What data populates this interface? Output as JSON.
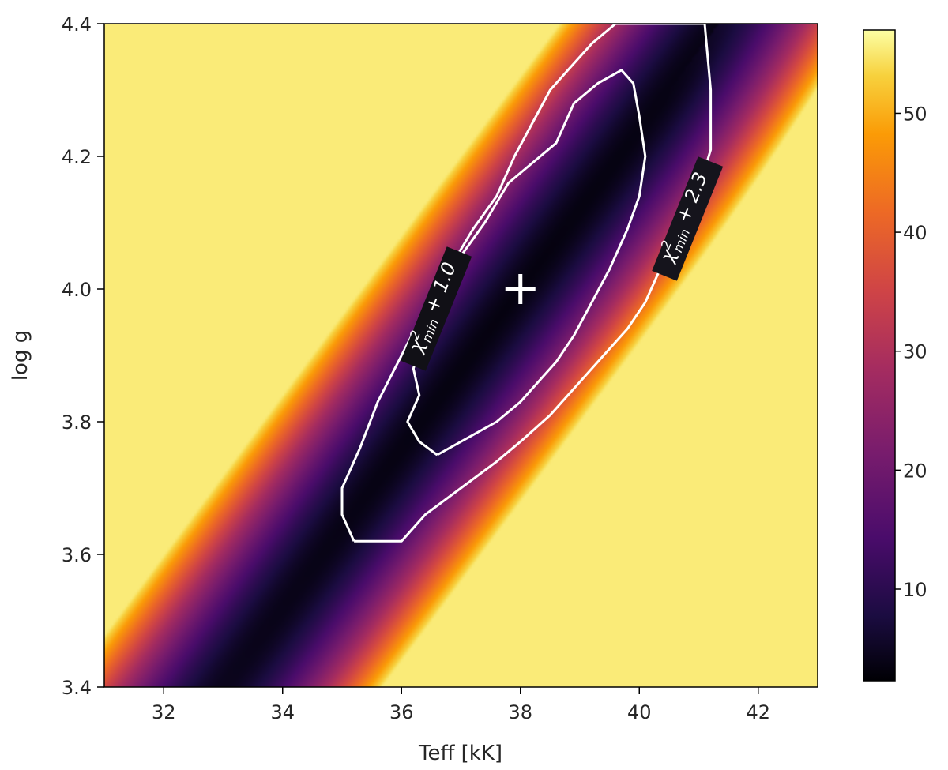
{
  "chart_data": {
    "type": "heatmap",
    "title": "",
    "xlabel": "Teff [kK]",
    "ylabel": "log g",
    "xlim": [
      31,
      43
    ],
    "ylim": [
      3.4,
      4.4
    ],
    "x_ticks": [
      32,
      34,
      36,
      38,
      40,
      42
    ],
    "y_ticks": [
      3.4,
      3.6,
      3.8,
      4.0,
      4.2,
      4.4
    ],
    "x_tick_labels": [
      "32",
      "34",
      "36",
      "38",
      "40",
      "42"
    ],
    "y_tick_labels": [
      "3.4",
      "3.6",
      "3.8",
      "4.0",
      "4.2",
      "4.4"
    ],
    "colormap": "inferno",
    "colorbar": {
      "range": [
        2.3,
        57
      ],
      "ticks": [
        10,
        20,
        30,
        40,
        50
      ],
      "tick_labels": [
        "10",
        "20",
        "30",
        "40",
        "50"
      ]
    },
    "best_fit": {
      "teff": 38.0,
      "logg": 4.0,
      "marker": "plus"
    },
    "contours": [
      {
        "label_prefix": "χ",
        "label_sup": "2",
        "label_sub": "min",
        "label_suffix": " + 1.0",
        "points": [
          [
            36.6,
            3.75
          ],
          [
            37.0,
            3.77
          ],
          [
            37.6,
            3.8
          ],
          [
            38.0,
            3.83
          ],
          [
            38.3,
            3.86
          ],
          [
            38.6,
            3.89
          ],
          [
            38.9,
            3.93
          ],
          [
            39.2,
            3.98
          ],
          [
            39.5,
            4.03
          ],
          [
            39.8,
            4.09
          ],
          [
            40.0,
            4.14
          ],
          [
            40.1,
            4.2
          ],
          [
            40.0,
            4.26
          ],
          [
            39.9,
            4.31
          ],
          [
            39.7,
            4.33
          ],
          [
            39.3,
            4.31
          ],
          [
            38.9,
            4.28
          ],
          [
            38.6,
            4.22
          ],
          [
            38.2,
            4.19
          ],
          [
            37.8,
            4.16
          ],
          [
            37.4,
            4.1
          ],
          [
            37.0,
            4.05
          ],
          [
            36.7,
            4.0
          ],
          [
            36.4,
            3.94
          ],
          [
            36.2,
            3.88
          ],
          [
            36.3,
            3.84
          ],
          [
            36.1,
            3.8
          ],
          [
            36.3,
            3.77
          ],
          [
            36.6,
            3.75
          ]
        ]
      },
      {
        "label_prefix": "χ",
        "label_sup": "2",
        "label_sub": "min",
        "label_suffix": " + 2.3",
        "points": [
          [
            35.2,
            3.62
          ],
          [
            35.6,
            3.62
          ],
          [
            36.0,
            3.62
          ],
          [
            36.4,
            3.66
          ],
          [
            37.0,
            3.7
          ],
          [
            37.6,
            3.74
          ],
          [
            38.0,
            3.77
          ],
          [
            38.5,
            3.81
          ],
          [
            39.0,
            3.86
          ],
          [
            39.4,
            3.9
          ],
          [
            39.8,
            3.94
          ],
          [
            40.1,
            3.98
          ],
          [
            40.3,
            4.02
          ],
          [
            40.6,
            4.08
          ],
          [
            41.0,
            4.15
          ],
          [
            41.2,
            4.21
          ],
          [
            41.2,
            4.3
          ],
          [
            41.1,
            4.4
          ],
          [
            39.6,
            4.4
          ],
          [
            39.2,
            4.37
          ],
          [
            38.8,
            4.33
          ],
          [
            38.5,
            4.3
          ],
          [
            38.2,
            4.25
          ],
          [
            37.9,
            4.2
          ],
          [
            37.6,
            4.14
          ],
          [
            37.2,
            4.09
          ],
          [
            36.8,
            4.03
          ],
          [
            36.4,
            3.97
          ],
          [
            36.0,
            3.9
          ],
          [
            35.6,
            3.83
          ],
          [
            35.3,
            3.76
          ],
          [
            35.0,
            3.7
          ],
          [
            35.0,
            3.66
          ],
          [
            35.2,
            3.62
          ]
        ]
      }
    ]
  }
}
